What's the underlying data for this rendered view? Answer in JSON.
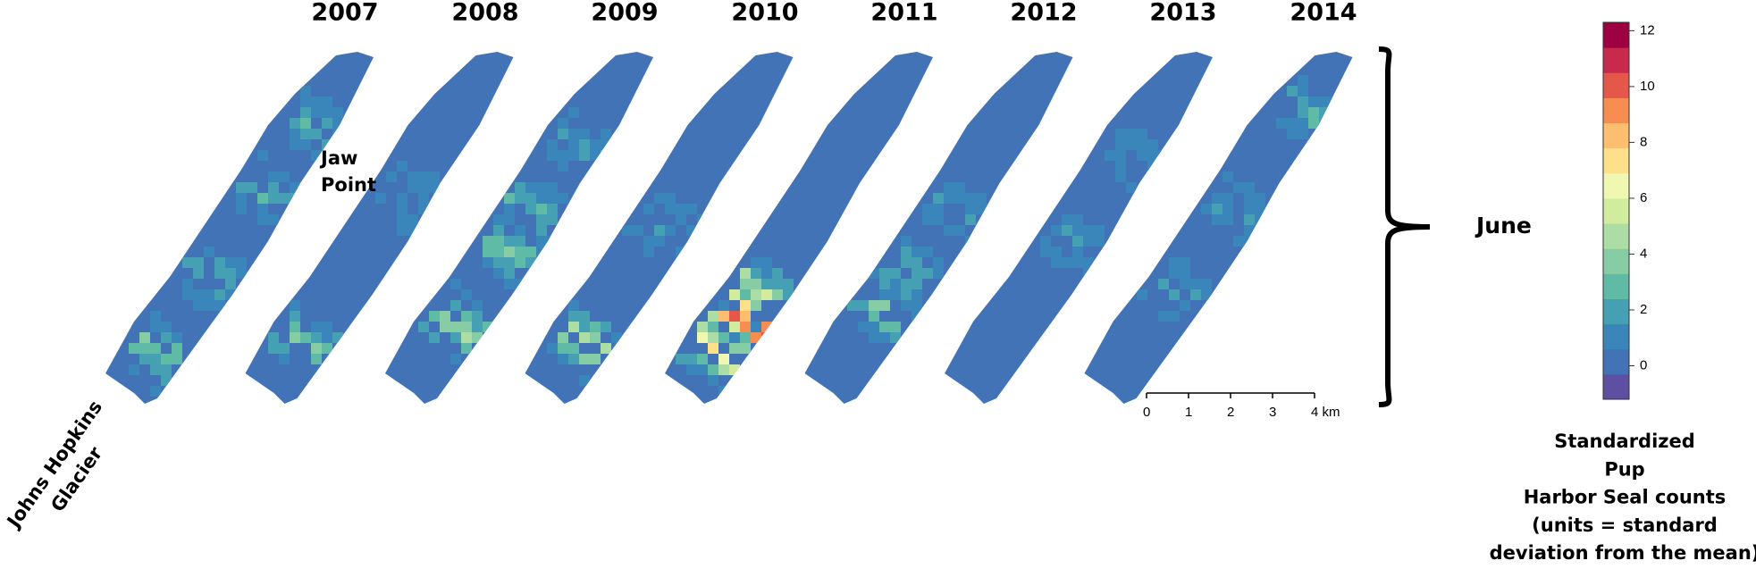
{
  "years": [
    "2007",
    "2008",
    "2009",
    "2010",
    "2011",
    "2012",
    "2013",
    "2014"
  ],
  "place_labels": {
    "jaw_point": [
      "Jaw",
      "Point"
    ],
    "glacier": [
      "Johns Hopkins",
      "Glacier"
    ]
  },
  "month": "June",
  "colorbar": {
    "lim": [
      -1.2,
      12.3
    ],
    "ticks": [
      0,
      2,
      4,
      6,
      8,
      10,
      12
    ],
    "colors": [
      "#5e4fa2",
      "#4173b6",
      "#3a86bb",
      "#45a0b3",
      "#5fbaa6",
      "#86cda5",
      "#abdda4",
      "#d0ec9c",
      "#f0f7b0",
      "#fee08b",
      "#fdbe6f",
      "#f88d52",
      "#e55749",
      "#c82a4e",
      "#9e0142"
    ],
    "title": [
      "Standardized",
      "Pup",
      "Harbor Seal counts",
      "(units = standard",
      "deviation from the mean)"
    ]
  },
  "scale_bar": {
    "ticks": [
      0,
      1,
      2,
      3,
      {
        "value": 4,
        "label": "4 km"
      }
    ]
  }
}
